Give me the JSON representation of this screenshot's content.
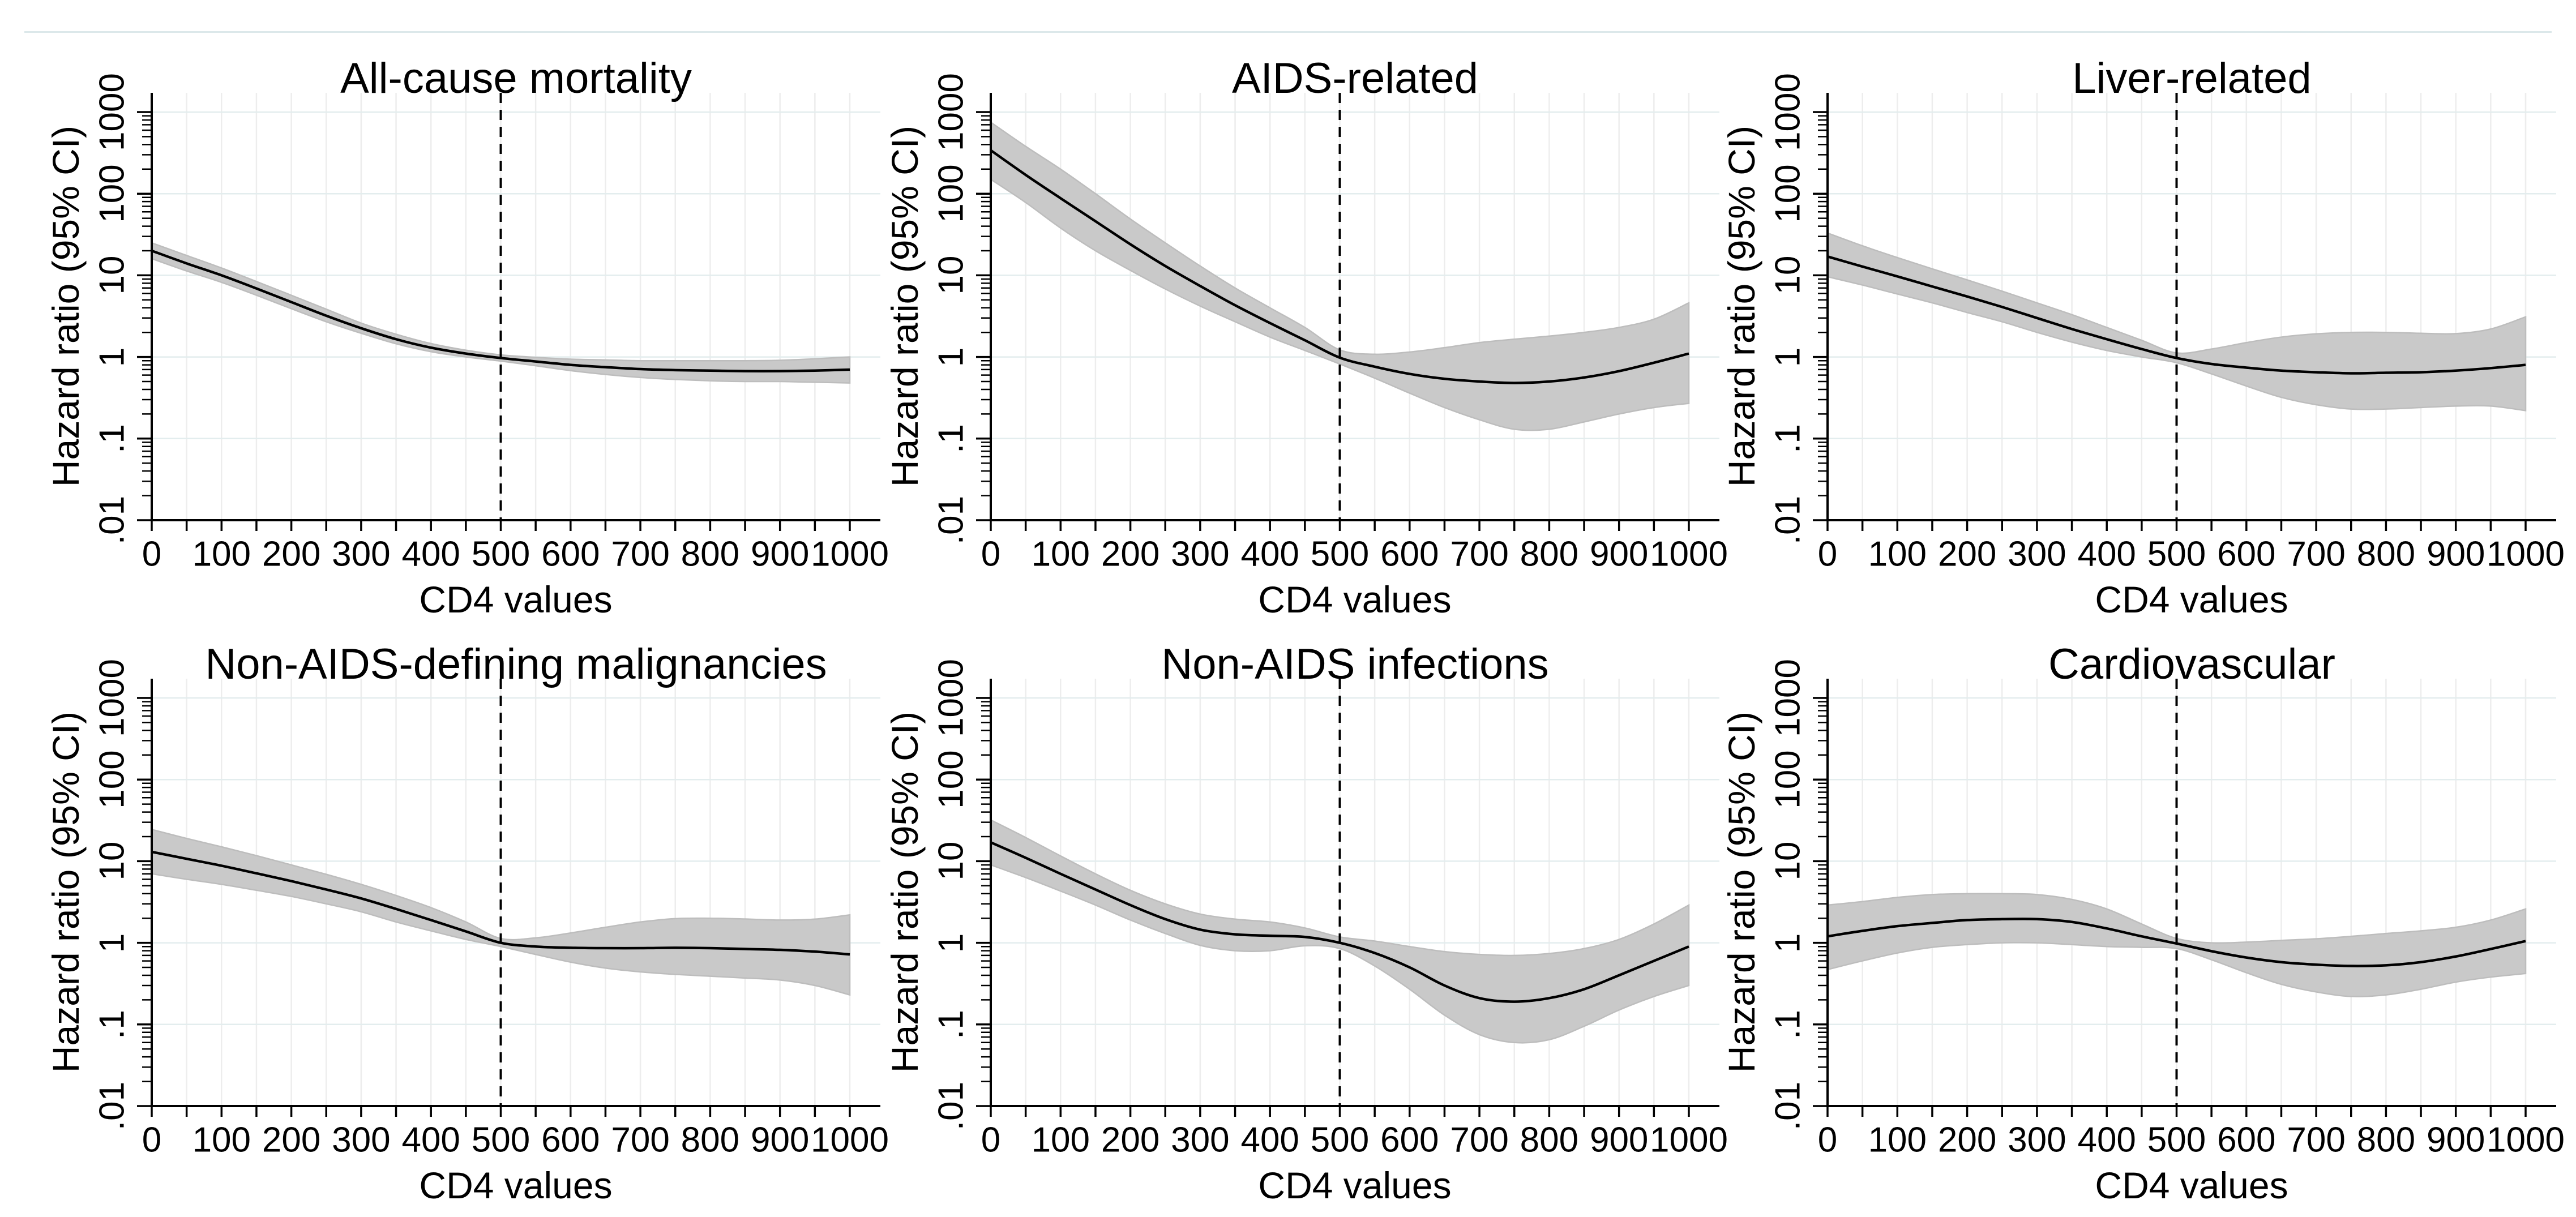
{
  "figure": {
    "y_axis_label": "Hazard ratio (95% CI)",
    "x_axis_label": "CD4 values"
  },
  "colors": {
    "curve": "#000000",
    "ci_band": "#c9c9c9",
    "ci_edge": "#bdbdbd",
    "grid_vertical": "#ededed",
    "grid_horizontal": "#e3edee",
    "axis": "#000000",
    "reference_line": "#000000",
    "top_border": "#dce8ea"
  },
  "axes": {
    "y_scale": "log",
    "ylim": [
      0.01,
      1000
    ],
    "y_ticks": [
      0.01,
      0.1,
      1,
      10,
      100,
      1000
    ],
    "y_tick_labels": [
      ".01",
      ".1",
      "1",
      "10",
      "100",
      "1000"
    ],
    "x_range": [
      0,
      1000
    ],
    "x_major_ticks": [
      0,
      100,
      200,
      300,
      400,
      500,
      600,
      700,
      800,
      900,
      1000
    ],
    "x_tick_labels": [
      "0",
      "100",
      "200",
      "300",
      "400",
      "500",
      "600",
      "700",
      "800",
      "900",
      "1000"
    ],
    "x_minor_tick_step": 50,
    "grid": true,
    "legend": "none"
  },
  "chart_data": [
    {
      "type": "line",
      "title": "All-cause mortality",
      "xlabel": "CD4 values",
      "ylabel": "Hazard ratio (95% CI)",
      "yscale": "log",
      "ylim": [
        0.01,
        1000
      ],
      "reference_line_x": 500,
      "x": [
        0,
        50,
        100,
        150,
        200,
        250,
        300,
        350,
        400,
        450,
        500,
        550,
        600,
        650,
        700,
        750,
        800,
        850,
        900,
        950,
        1000
      ],
      "hr": [
        20,
        14,
        10,
        6.9,
        4.7,
        3.2,
        2.25,
        1.65,
        1.3,
        1.1,
        0.97,
        0.88,
        0.8,
        0.75,
        0.71,
        0.69,
        0.68,
        0.67,
        0.67,
        0.68,
        0.7
      ],
      "ci_lower": [
        16,
        11.3,
        8.2,
        5.7,
        3.9,
        2.7,
        1.95,
        1.45,
        1.16,
        1.0,
        0.89,
        0.78,
        0.68,
        0.61,
        0.56,
        0.53,
        0.51,
        0.5,
        0.5,
        0.49,
        0.48
      ],
      "ci_upper": [
        25,
        17.5,
        12.3,
        8.4,
        5.7,
        3.85,
        2.6,
        1.9,
        1.46,
        1.21,
        1.06,
        0.99,
        0.94,
        0.92,
        0.9,
        0.9,
        0.9,
        0.9,
        0.91,
        0.95,
        1.0
      ]
    },
    {
      "type": "line",
      "title": "AIDS-related",
      "xlabel": "CD4 values",
      "ylabel": "Hazard ratio (95% CI)",
      "yscale": "log",
      "ylim": [
        0.01,
        1000
      ],
      "reference_line_x": 500,
      "x": [
        0,
        50,
        100,
        150,
        200,
        250,
        300,
        350,
        400,
        450,
        500,
        550,
        600,
        650,
        700,
        750,
        800,
        850,
        900,
        950,
        1000
      ],
      "hr": [
        340,
        170,
        88,
        46,
        24,
        13,
        7.4,
        4.3,
        2.6,
        1.6,
        0.98,
        0.76,
        0.62,
        0.54,
        0.5,
        0.48,
        0.5,
        0.56,
        0.67,
        0.85,
        1.1
      ],
      "ci_lower": [
        150,
        78,
        38,
        20,
        11.5,
        6.8,
        4.2,
        2.7,
        1.75,
        1.2,
        0.82,
        0.55,
        0.36,
        0.24,
        0.17,
        0.13,
        0.13,
        0.16,
        0.2,
        0.24,
        0.27
      ],
      "ci_upper": [
        750,
        380,
        200,
        100,
        49,
        25,
        13,
        7.0,
        4.0,
        2.3,
        1.22,
        1.08,
        1.15,
        1.3,
        1.5,
        1.65,
        1.8,
        2.0,
        2.3,
        2.9,
        4.6
      ]
    },
    {
      "type": "line",
      "title": "Liver-related",
      "xlabel": "CD4 values",
      "ylabel": "Hazard ratio (95% CI)",
      "yscale": "log",
      "ylim": [
        0.01,
        1000
      ],
      "reference_line_x": 500,
      "x": [
        0,
        50,
        100,
        150,
        200,
        250,
        300,
        350,
        400,
        450,
        500,
        550,
        600,
        650,
        700,
        750,
        800,
        850,
        900,
        950,
        1000
      ],
      "hr": [
        17,
        12.8,
        9.7,
        7.3,
        5.5,
        4.1,
        3.0,
        2.2,
        1.65,
        1.25,
        0.97,
        0.82,
        0.74,
        0.68,
        0.65,
        0.63,
        0.64,
        0.65,
        0.68,
        0.73,
        0.8
      ],
      "ci_lower": [
        9.6,
        7.6,
        5.9,
        4.6,
        3.5,
        2.7,
        2.0,
        1.52,
        1.2,
        1.0,
        0.85,
        0.62,
        0.44,
        0.32,
        0.26,
        0.23,
        0.23,
        0.24,
        0.25,
        0.25,
        0.22
      ],
      "ci_upper": [
        33,
        23,
        16.5,
        12,
        8.8,
        6.4,
        4.6,
        3.3,
        2.3,
        1.6,
        1.12,
        1.25,
        1.5,
        1.75,
        1.92,
        2.0,
        2.0,
        1.95,
        1.93,
        2.2,
        3.1
      ]
    },
    {
      "type": "line",
      "title": "Non-AIDS-defining malignancies",
      "xlabel": "CD4 values",
      "ylabel": "Hazard ratio (95% CI)",
      "yscale": "log",
      "ylim": [
        0.01,
        1000
      ],
      "reference_line_x": 500,
      "x": [
        0,
        50,
        100,
        150,
        200,
        250,
        300,
        350,
        400,
        450,
        500,
        550,
        600,
        650,
        700,
        750,
        800,
        850,
        900,
        950,
        1000
      ],
      "hr": [
        13,
        10.7,
        8.8,
        7.1,
        5.7,
        4.5,
        3.5,
        2.6,
        1.9,
        1.38,
        1.0,
        0.9,
        0.87,
        0.86,
        0.86,
        0.87,
        0.86,
        0.84,
        0.82,
        0.78,
        0.72
      ],
      "ci_lower": [
        7.0,
        6.0,
        5.2,
        4.4,
        3.7,
        3.0,
        2.4,
        1.8,
        1.4,
        1.1,
        0.9,
        0.72,
        0.58,
        0.49,
        0.44,
        0.41,
        0.39,
        0.37,
        0.35,
        0.3,
        0.23
      ],
      "ci_upper": [
        24.5,
        19,
        15,
        11.7,
        9.0,
        6.9,
        5.2,
        3.8,
        2.7,
        1.8,
        1.13,
        1.15,
        1.32,
        1.55,
        1.8,
        1.98,
        2.0,
        1.96,
        1.9,
        1.95,
        2.2
      ]
    },
    {
      "type": "line",
      "title": "Non-AIDS infections",
      "xlabel": "CD4 values",
      "ylabel": "Hazard ratio (95% CI)",
      "yscale": "log",
      "ylim": [
        0.01,
        1000
      ],
      "reference_line_x": 500,
      "x": [
        0,
        50,
        100,
        150,
        200,
        250,
        300,
        350,
        400,
        450,
        500,
        550,
        600,
        650,
        700,
        750,
        800,
        850,
        900,
        950,
        1000
      ],
      "hr": [
        17,
        11,
        7.0,
        4.5,
        2.9,
        1.95,
        1.45,
        1.27,
        1.22,
        1.18,
        1.0,
        0.75,
        0.5,
        0.3,
        0.21,
        0.19,
        0.21,
        0.27,
        0.4,
        0.6,
        0.9
      ],
      "ci_lower": [
        9.0,
        6.3,
        4.3,
        2.9,
        1.9,
        1.3,
        0.93,
        0.8,
        0.8,
        0.92,
        0.85,
        0.52,
        0.27,
        0.13,
        0.075,
        0.06,
        0.065,
        0.095,
        0.15,
        0.22,
        0.3
      ],
      "ci_upper": [
        32,
        19.5,
        11.6,
        7.0,
        4.4,
        3.0,
        2.25,
        1.95,
        1.8,
        1.52,
        1.18,
        1.05,
        0.9,
        0.78,
        0.72,
        0.7,
        0.74,
        0.85,
        1.1,
        1.7,
        2.9
      ]
    },
    {
      "type": "line",
      "title": "Cardiovascular",
      "xlabel": "CD4 values",
      "ylabel": "Hazard ratio (95% CI)",
      "yscale": "log",
      "ylim": [
        0.01,
        1000
      ],
      "reference_line_x": 500,
      "x": [
        0,
        50,
        100,
        150,
        200,
        250,
        300,
        350,
        400,
        450,
        500,
        550,
        600,
        650,
        700,
        750,
        800,
        850,
        900,
        950,
        1000
      ],
      "hr": [
        1.2,
        1.4,
        1.6,
        1.75,
        1.9,
        1.95,
        1.95,
        1.8,
        1.5,
        1.2,
        0.98,
        0.79,
        0.66,
        0.58,
        0.54,
        0.52,
        0.53,
        0.58,
        0.68,
        0.84,
        1.05
      ],
      "ci_lower": [
        0.47,
        0.6,
        0.75,
        0.88,
        0.95,
        1.0,
        1.0,
        0.95,
        0.9,
        0.88,
        0.85,
        0.62,
        0.43,
        0.31,
        0.25,
        0.22,
        0.23,
        0.27,
        0.33,
        0.38,
        0.42
      ],
      "ci_upper": [
        2.9,
        3.2,
        3.6,
        3.9,
        4.0,
        4.0,
        3.9,
        3.4,
        2.6,
        1.7,
        1.13,
        1.0,
        1.02,
        1.07,
        1.12,
        1.2,
        1.3,
        1.4,
        1.55,
        1.9,
        2.6
      ]
    }
  ]
}
